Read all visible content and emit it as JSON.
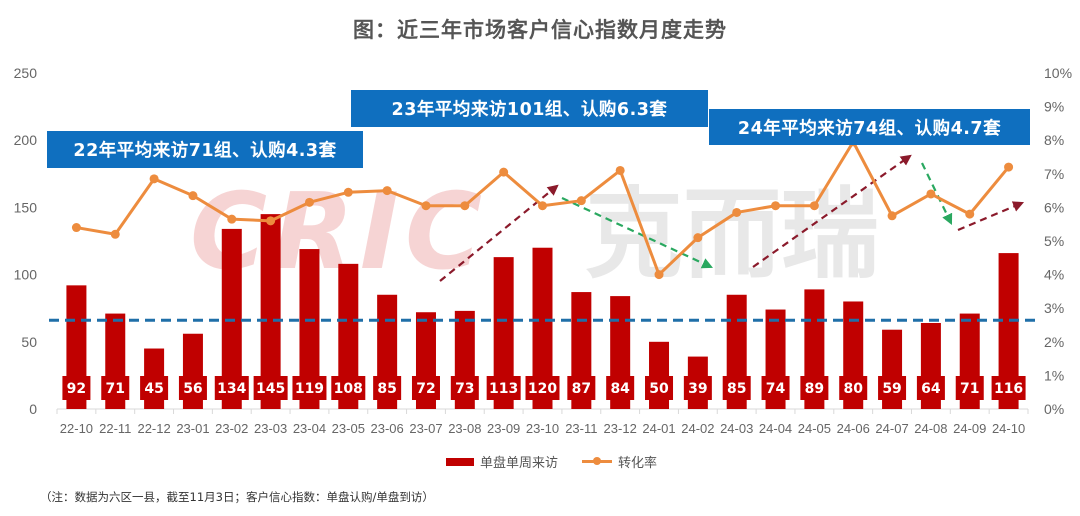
{
  "title": "图：近三年市场客户信心指数月度走势",
  "note": "（注：数据为六区一县，截至11月3日；客户信心指数：单盘认购/单盘到访）",
  "callouts": [
    {
      "text": "22年平均来访71组、认购4.3套"
    },
    {
      "text": "23年平均来访101组、认购6.3套"
    },
    {
      "text": "24年平均来访74组、认购4.7套"
    }
  ],
  "legend": {
    "bar": "单盘单周来访",
    "line": "转化率"
  },
  "colors": {
    "bar": "#c00000",
    "line": "#ed8c3e",
    "avg_line": "#1f6fa8",
    "callout_bg": "#0f6fbf",
    "up_arrow": "#8b1a2b",
    "down_arrow": "#2aa860"
  },
  "chart_data": {
    "type": "bar",
    "title": "图：近三年市场客户信心指数月度走势",
    "categories": [
      "22-10",
      "22-11",
      "22-12",
      "23-01",
      "23-02",
      "23-03",
      "23-04",
      "23-05",
      "23-06",
      "23-07",
      "23-08",
      "23-09",
      "23-10",
      "23-11",
      "23-12",
      "24-01",
      "24-02",
      "24-03",
      "24-04",
      "24-05",
      "24-06",
      "24-07",
      "24-08",
      "24-09",
      "24-10"
    ],
    "series": [
      {
        "name": "单盘单周来访",
        "type": "bar",
        "axis": "left",
        "values": [
          92,
          71,
          45,
          56,
          134,
          145,
          119,
          108,
          85,
          72,
          73,
          113,
          120,
          87,
          84,
          50,
          39,
          85,
          74,
          89,
          80,
          59,
          64,
          71,
          116
        ]
      },
      {
        "name": "转化率",
        "type": "line",
        "axis": "right",
        "unit": "%",
        "values": [
          5.4,
          5.2,
          6.85,
          6.35,
          5.65,
          5.6,
          6.15,
          6.45,
          6.5,
          6.05,
          6.05,
          7.05,
          6.05,
          6.2,
          7.1,
          4.0,
          5.1,
          5.85,
          6.05,
          6.05,
          7.95,
          5.75,
          6.4,
          5.8,
          7.2
        ]
      }
    ],
    "average_line": {
      "value": 66,
      "style": "dashed"
    },
    "xlabel": "",
    "ylabel": "",
    "ylim": [
      0,
      250
    ],
    "yticks": [
      0,
      50,
      100,
      150,
      200,
      250
    ],
    "y2lim": [
      0,
      10
    ],
    "y2ticks": [
      "0%",
      "1%",
      "2%",
      "3%",
      "4%",
      "5%",
      "6%",
      "7%",
      "8%",
      "9%",
      "10%"
    ],
    "grid": false,
    "legend_position": "bottom",
    "annotations": [
      "22年平均来访71组、认购4.3套",
      "23年平均来访101组、认购6.3套",
      "24年平均来访74组、认购4.7套"
    ]
  }
}
